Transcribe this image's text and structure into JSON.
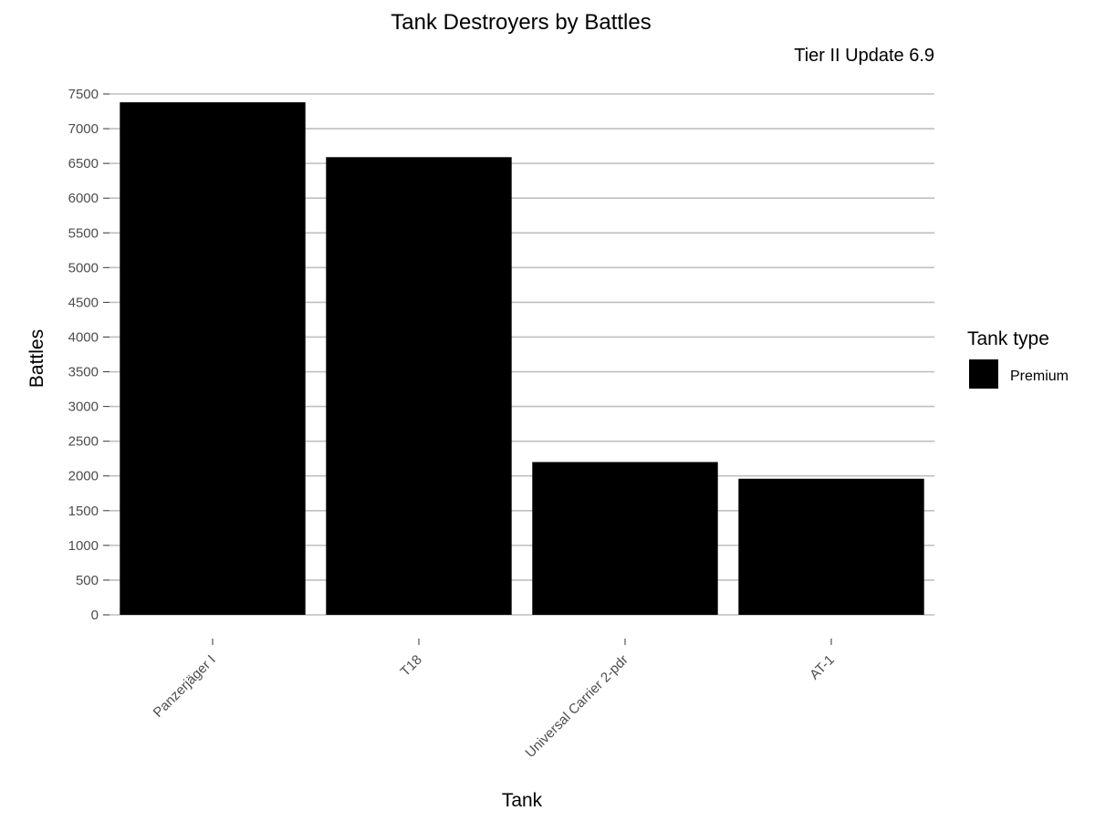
{
  "chart_data": {
    "type": "bar",
    "title": "Tank Destroyers by Battles",
    "subtitle": "Tier II Update 6.9",
    "xlabel": "Tank",
    "ylabel": "Battles",
    "categories": [
      "Panzerjäger I",
      "T18",
      "Universal Carrier 2-pdr",
      "AT-1"
    ],
    "series": [
      {
        "name": "Premium",
        "values": [
          7380,
          6590,
          2200,
          1960
        ],
        "color": "#000000"
      }
    ],
    "ylim": [
      0,
      7500
    ],
    "yticks": [
      "0",
      "500",
      "1000",
      "1500",
      "2000",
      "2500",
      "3000",
      "3500",
      "4000",
      "4500",
      "5000",
      "5500",
      "6000",
      "6500",
      "7000",
      "7500"
    ],
    "grid": true,
    "legend": {
      "title": "Tank type",
      "placement": "right"
    }
  }
}
